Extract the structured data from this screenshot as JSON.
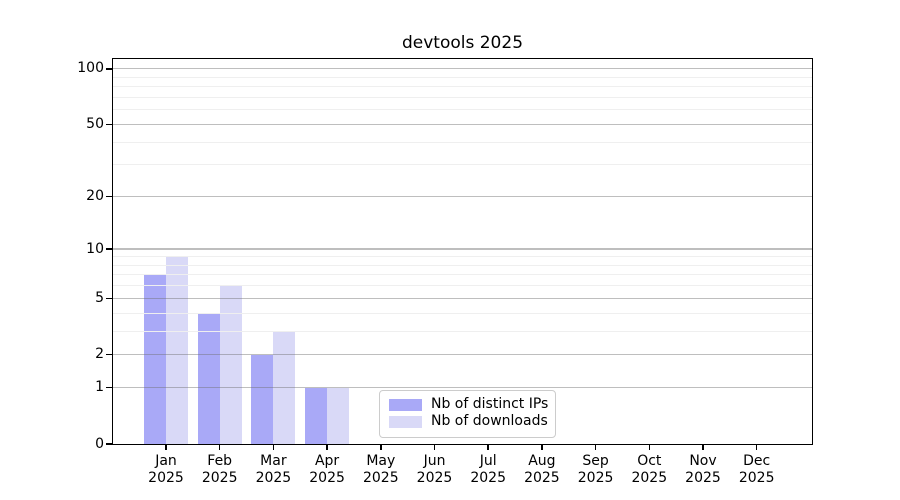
{
  "chart_data": {
    "type": "bar",
    "title": "devtools 2025",
    "categories": [
      "Jan 2025",
      "Feb 2025",
      "Mar 2025",
      "Apr 2025",
      "May 2025",
      "Jun 2025",
      "Jul 2025",
      "Aug 2025",
      "Sep 2025",
      "Oct 2025",
      "Nov 2025",
      "Dec 2025"
    ],
    "series": [
      {
        "name": "Nb of distinct IPs",
        "color": "#a9a9f7",
        "values": [
          7,
          4,
          2,
          1,
          0,
          0,
          0,
          0,
          0,
          0,
          0,
          0
        ]
      },
      {
        "name": "Nb of downloads",
        "color": "#d9d9f7",
        "values": [
          9,
          6,
          3,
          1,
          0,
          0,
          0,
          0,
          0,
          0,
          0,
          0
        ]
      }
    ],
    "xlabel": "",
    "ylabel": "",
    "y_scale": "log1p",
    "y_ticks": [
      0,
      1,
      2,
      5,
      10,
      20,
      50,
      100
    ],
    "y_minor_ticks": [
      3,
      4,
      6,
      7,
      8,
      9,
      30,
      40,
      60,
      70,
      80,
      90
    ],
    "ylim": [
      0,
      112
    ],
    "grid": "horizontal major and minor, drawn over bars",
    "legend_position": "lower center inside plot",
    "colors": {
      "major_grid": "#c2c2c2",
      "minor_grid": "#efefef",
      "axis": "#000000",
      "background": "#ffffff"
    }
  }
}
